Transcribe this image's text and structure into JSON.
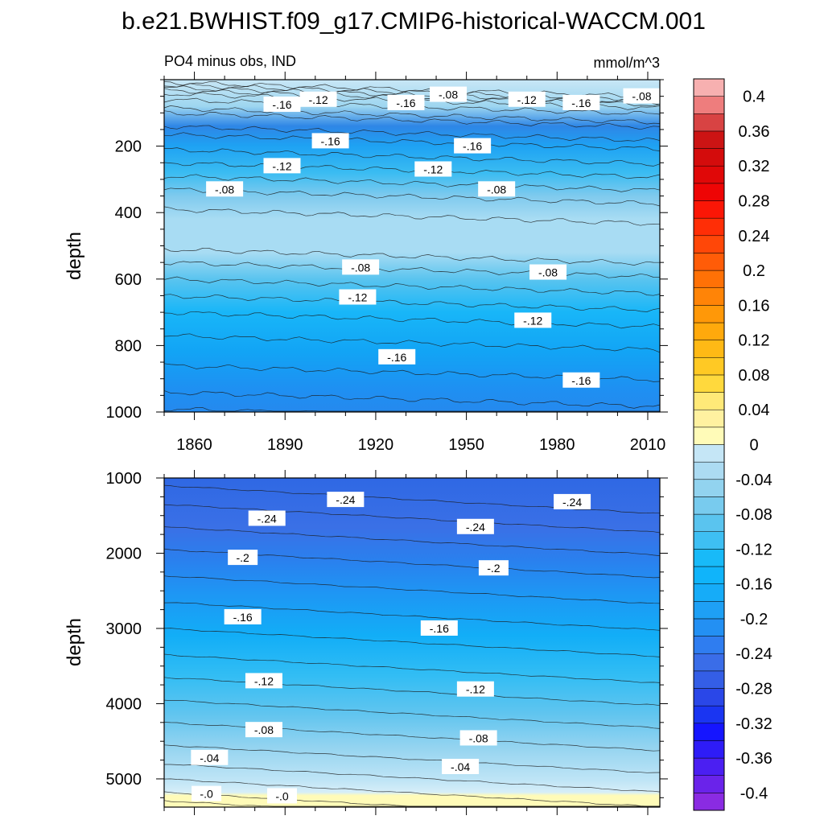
{
  "title": "b.e21.BWHIST.f09_g17.CMIP6-historical-WACCM.001",
  "subtitle_left": "PO4 minus obs, IND",
  "subtitle_right": "mmol/m^3",
  "chart_data": [
    {
      "type": "heatmap",
      "panel": "upper",
      "ylabel": "depth",
      "xlim": [
        1850,
        2014
      ],
      "ylim": [
        0,
        1000
      ],
      "y_inverted": true,
      "xticks": [
        1860,
        1890,
        1920,
        1950,
        1980,
        2010
      ],
      "yticks": [
        200,
        400,
        600,
        800,
        1000
      ],
      "contour_labels": [
        {
          "text": "-.16",
          "x": 1889,
          "y": 75
        },
        {
          "text": "-.12",
          "x": 1901,
          "y": 60
        },
        {
          "text": "-.16",
          "x": 1930,
          "y": 70
        },
        {
          "text": "-.08",
          "x": 1944,
          "y": 45
        },
        {
          "text": "-.12",
          "x": 1970,
          "y": 60
        },
        {
          "text": "-.16",
          "x": 1988,
          "y": 70
        },
        {
          "text": "-.08",
          "x": 2008,
          "y": 50
        },
        {
          "text": "-.16",
          "x": 1905,
          "y": 185
        },
        {
          "text": "-.16",
          "x": 1952,
          "y": 200
        },
        {
          "text": "-.12",
          "x": 1889,
          "y": 260
        },
        {
          "text": "-.12",
          "x": 1939,
          "y": 270
        },
        {
          "text": "-.08",
          "x": 1870,
          "y": 330
        },
        {
          "text": "-.08",
          "x": 1960,
          "y": 330
        },
        {
          "text": "-.08",
          "x": 1915,
          "y": 565
        },
        {
          "text": "-.08",
          "x": 1977,
          "y": 580
        },
        {
          "text": "-.12",
          "x": 1914,
          "y": 655
        },
        {
          "text": "-.12",
          "x": 1972,
          "y": 725
        },
        {
          "text": "-.16",
          "x": 1927,
          "y": 835
        },
        {
          "text": "-.16",
          "x": 1988,
          "y": 905
        }
      ]
    },
    {
      "type": "heatmap",
      "panel": "lower",
      "ylabel": "depth",
      "xlim": [
        1850,
        2014
      ],
      "ylim": [
        1000,
        5375
      ],
      "y_inverted": true,
      "yticks": [
        1000,
        2000,
        3000,
        4000,
        5000
      ],
      "contour_labels": [
        {
          "text": "-.24",
          "x": 1910,
          "y": 1290
        },
        {
          "text": "-.24",
          "x": 1884,
          "y": 1540
        },
        {
          "text": "-.24",
          "x": 1953,
          "y": 1650
        },
        {
          "text": "-.24",
          "x": 1985,
          "y": 1320
        },
        {
          "text": "-.2",
          "x": 1876,
          "y": 2060
        },
        {
          "text": "-.2",
          "x": 1959,
          "y": 2200
        },
        {
          "text": "-.16",
          "x": 1876,
          "y": 2850
        },
        {
          "text": "-.16",
          "x": 1941,
          "y": 3000
        },
        {
          "text": "-.12",
          "x": 1883,
          "y": 3700
        },
        {
          "text": "-.12",
          "x": 1953,
          "y": 3810
        },
        {
          "text": "-.08",
          "x": 1883,
          "y": 4350
        },
        {
          "text": "-.08",
          "x": 1954,
          "y": 4460
        },
        {
          "text": "-.04",
          "x": 1865,
          "y": 4720
        },
        {
          "text": "-.04",
          "x": 1948,
          "y": 4840
        },
        {
          "text": "-.0",
          "x": 1864,
          "y": 5200
        },
        {
          "text": "-.0",
          "x": 1889,
          "y": 5230
        }
      ]
    }
  ],
  "colorbar": {
    "levels": [
      -0.42,
      -0.4,
      -0.38,
      -0.36,
      -0.34,
      -0.32,
      -0.3,
      -0.28,
      -0.26,
      -0.24,
      -0.22,
      -0.2,
      -0.18,
      -0.16,
      -0.14,
      -0.12,
      -0.1,
      -0.08,
      -0.06,
      -0.04,
      -0.02,
      0,
      0.02,
      0.04,
      0.06,
      0.08,
      0.1,
      0.12,
      0.14,
      0.16,
      0.18,
      0.2,
      0.22,
      0.24,
      0.26,
      0.28,
      0.3,
      0.32,
      0.34,
      0.36,
      0.38,
      0.4,
      0.42
    ],
    "colors": [
      "#8a2be2",
      "#6a23ea",
      "#4b1ff2",
      "#2e1cf7",
      "#1515ff",
      "#1a35f2",
      "#2a47e8",
      "#345ee6",
      "#3a6de8",
      "#2f7df0",
      "#2390f3",
      "#1ea0f5",
      "#16acf8",
      "#10b4fa",
      "#18baf8",
      "#3ebff3",
      "#5ac4ef",
      "#78cbee",
      "#92d3ef",
      "#acdbf2",
      "#c5e6f6",
      "#fffbb8",
      "#fff1a0",
      "#ffe978",
      "#ffd93d",
      "#ffc924",
      "#ffb915",
      "#ffa90c",
      "#ff9808",
      "#ff8407",
      "#ff7106",
      "#ff5c08",
      "#ff4708",
      "#ff2e06",
      "#fb1606",
      "#ee0505",
      "#e00808",
      "#d40c0c",
      "#cc1414",
      "#d84343",
      "#ee7d7d",
      "#f7b0b0"
    ],
    "tick_labels": [
      "-0.4",
      "-0.36",
      "-0.32",
      "-0.28",
      "-0.24",
      "-0.2",
      "-0.16",
      "-0.12",
      "-0.08",
      "-0.04",
      "0",
      "0.04",
      "0.08",
      "0.12",
      "0.16",
      "0.2",
      "0.24",
      "0.28",
      "0.32",
      "0.36",
      "0.4"
    ],
    "tick_values": [
      -0.4,
      -0.36,
      -0.32,
      -0.28,
      -0.24,
      -0.2,
      -0.16,
      -0.12,
      -0.08,
      -0.04,
      0,
      0.04,
      0.08,
      0.12,
      0.16,
      0.2,
      0.24,
      0.28,
      0.32,
      0.36,
      0.4
    ]
  }
}
